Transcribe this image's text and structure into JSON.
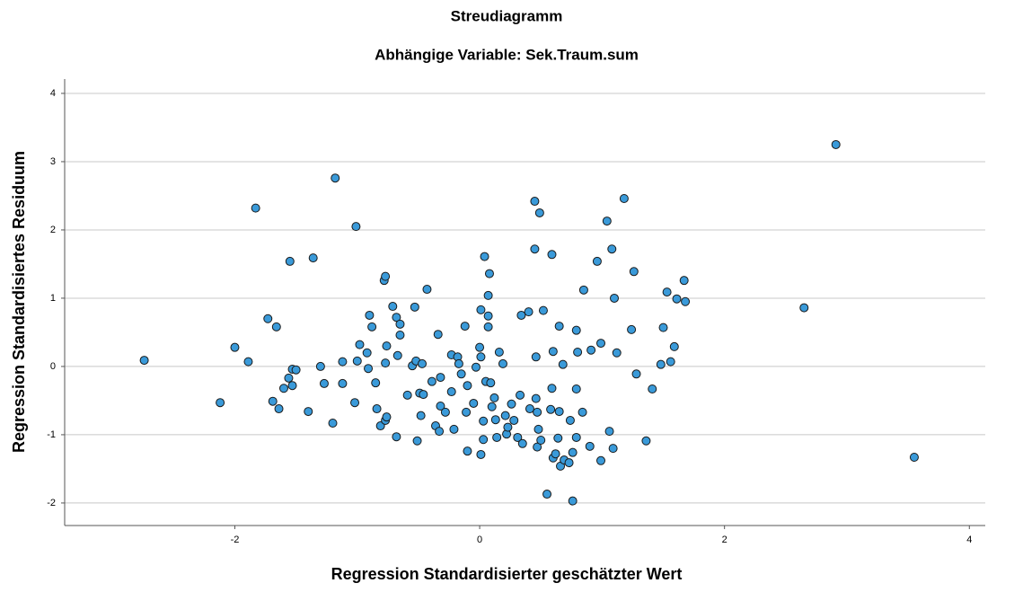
{
  "chart_data": {
    "type": "scatter",
    "title": "Streudiagramm",
    "subtitle": "Abhängige Variable: Sek.Traum.sum",
    "x_label": "Regression Standardisierter geschätzter Wert",
    "y_label": "Regression Standardisiertes Residuum",
    "color": "#3a9ad9",
    "grid": true,
    "xlim": [
      -3.39,
      4.13
    ],
    "ylim": [
      -2.33,
      4.21
    ],
    "xticks": [
      -2,
      0,
      2,
      4
    ],
    "yticks": [
      -2,
      -1,
      0,
      1,
      2,
      3,
      4
    ],
    "x": [
      -2.74,
      -2.12,
      -2.0,
      -1.89,
      -1.83,
      -1.73,
      -1.69,
      -1.66,
      -1.64,
      -1.6,
      -1.56,
      -1.55,
      -1.53,
      -1.53,
      -1.5,
      -1.4,
      -1.36,
      -1.3,
      -1.27,
      -1.2,
      -1.18,
      -1.12,
      -1.12,
      -1.02,
      -1.01,
      -1.0,
      -0.98,
      -0.92,
      -0.91,
      -0.9,
      -0.88,
      -0.85,
      -0.84,
      -0.81,
      -0.78,
      -0.77,
      -0.77,
      -0.76,
      -0.77,
      -0.76,
      -0.71,
      -0.68,
      -0.68,
      -0.67,
      -0.65,
      -0.65,
      -0.59,
      -0.55,
      -0.53,
      -0.51,
      -0.52,
      -0.49,
      -0.48,
      -0.47,
      -0.46,
      -0.43,
      -0.39,
      -0.36,
      -0.34,
      -0.33,
      -0.32,
      -0.32,
      -0.28,
      -0.23,
      -0.23,
      -0.21,
      -0.18,
      -0.17,
      -0.15,
      -0.12,
      -0.11,
      -0.1,
      -0.1,
      -0.05,
      -0.03,
      0.0,
      0.01,
      0.01,
      0.01,
      0.03,
      0.03,
      0.04,
      0.05,
      0.07,
      0.07,
      0.07,
      0.08,
      0.09,
      0.1,
      0.12,
      0.13,
      0.14,
      0.16,
      0.19,
      0.21,
      0.22,
      0.23,
      0.26,
      0.28,
      0.31,
      0.33,
      0.34,
      0.35,
      0.4,
      0.41,
      0.45,
      0.45,
      0.46,
      0.46,
      0.47,
      0.47,
      0.48,
      0.49,
      0.5,
      0.52,
      0.55,
      0.58,
      0.59,
      0.59,
      0.6,
      0.6,
      0.62,
      0.64,
      0.65,
      0.65,
      0.66,
      0.68,
      0.69,
      0.73,
      0.74,
      0.76,
      0.76,
      0.79,
      0.79,
      0.79,
      0.8,
      0.84,
      0.85,
      0.9,
      0.91,
      0.96,
      0.99,
      0.99,
      1.04,
      1.06,
      1.08,
      1.09,
      1.1,
      1.12,
      1.18,
      1.24,
      1.26,
      1.28,
      1.36,
      1.41,
      1.48,
      1.5,
      1.53,
      1.56,
      1.59,
      1.61,
      1.67,
      1.68,
      2.65,
      2.91,
      3.55
    ],
    "values": [
      0.09,
      -0.53,
      0.28,
      0.07,
      2.32,
      0.7,
      -0.51,
      0.58,
      -0.62,
      -0.32,
      -0.17,
      1.54,
      -0.28,
      -0.04,
      -0.05,
      -0.66,
      1.59,
      0.0,
      -0.25,
      -0.83,
      2.76,
      0.07,
      -0.25,
      -0.53,
      2.05,
      0.08,
      0.32,
      0.2,
      -0.03,
      0.75,
      0.58,
      -0.24,
      -0.62,
      -0.87,
      1.26,
      1.32,
      -0.79,
      -0.74,
      0.05,
      0.3,
      0.88,
      0.72,
      -1.03,
      0.16,
      0.62,
      0.46,
      -0.42,
      0.01,
      0.87,
      -1.09,
      0.08,
      -0.39,
      -0.72,
      0.04,
      -0.41,
      1.13,
      -0.22,
      -0.87,
      0.47,
      -0.95,
      -0.16,
      -0.58,
      -0.67,
      -0.37,
      0.17,
      -0.92,
      0.14,
      0.04,
      -0.11,
      0.59,
      -0.67,
      -0.28,
      -1.24,
      -0.54,
      -0.01,
      0.28,
      0.83,
      0.14,
      -1.29,
      -0.8,
      -1.07,
      1.61,
      -0.22,
      0.74,
      1.04,
      0.58,
      1.36,
      -0.24,
      -0.59,
      -0.46,
      -0.78,
      -1.04,
      0.21,
      0.04,
      -0.72,
      -0.99,
      -0.89,
      -0.55,
      -0.79,
      -1.04,
      -0.42,
      0.75,
      -1.13,
      0.8,
      -0.62,
      2.42,
      1.72,
      0.14,
      -0.47,
      -0.67,
      -1.18,
      -0.92,
      2.25,
      -1.08,
      0.82,
      -1.87,
      -0.63,
      -0.32,
      1.64,
      -1.34,
      0.22,
      -1.28,
      -1.05,
      0.59,
      -0.66,
      -1.46,
      0.03,
      -1.37,
      -1.41,
      -0.79,
      -1.97,
      -1.26,
      -0.33,
      0.53,
      -1.04,
      0.21,
      -0.67,
      1.12,
      -1.17,
      0.24,
      1.54,
      0.34,
      -1.38,
      2.13,
      -0.95,
      1.72,
      -1.2,
      1.0,
      0.2,
      2.46,
      0.54,
      1.39,
      -0.11,
      -1.09,
      -0.33,
      0.03,
      0.57,
      1.09,
      0.07,
      0.29,
      0.99,
      1.26,
      0.95,
      0.86,
      3.25,
      -1.33
    ]
  }
}
